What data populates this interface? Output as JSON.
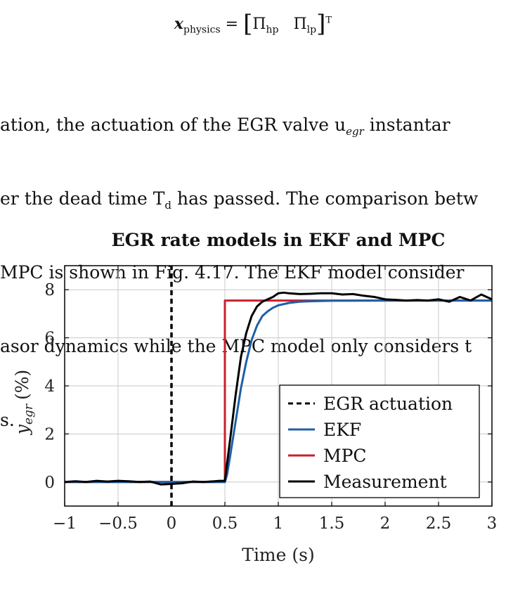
{
  "equation": {
    "lhs_symbol": "x",
    "lhs_subscript": "physics",
    "equals": "=",
    "open_bracket": "[",
    "pi1": "Π",
    "pi1_sub": "hp",
    "pi2": "Π",
    "pi2_sub": "lp",
    "close_bracket": "]",
    "superscript": "T"
  },
  "paragraph": {
    "lines": [
      "ation, the actuation of the EGR valve u",
      "er the dead time T",
      "MPC is shown in Fig. 4.17. The EKF model consider",
      "asor dynamics while the MPC model only considers t",
      "s."
    ],
    "line1_sub": "egr",
    "line1_tail": " instantar",
    "line2_sub": "d",
    "line2_tail": " has passed. The comparison betw"
  },
  "chart_data": {
    "type": "line",
    "title": "EGR rate models in EKF and MPC",
    "xlabel": "Time (s)",
    "ylabel": "y",
    "ylabel_sub": "egr",
    "ylabel_unit": "(%)",
    "xlim": [
      -1,
      3
    ],
    "ylim": [
      -1,
      9
    ],
    "xticks": [
      -1,
      -0.5,
      0,
      0.5,
      1,
      1.5,
      2,
      2.5,
      3
    ],
    "xtick_labels": [
      "−1",
      "−0.5",
      "0",
      "0.5",
      "1",
      "1.5",
      "2",
      "2.5",
      "3"
    ],
    "yticks": [
      0,
      2,
      4,
      6,
      8
    ],
    "ytick_labels": [
      "0",
      "2",
      "4",
      "6",
      "8"
    ],
    "grid": true,
    "legend_position": "bottom-right",
    "vline_x": 0,
    "series": [
      {
        "name": "EGR actuation",
        "color": "#000000",
        "style": "dashed",
        "x": [
          0,
          0
        ],
        "y": [
          -1,
          9
        ]
      },
      {
        "name": "EKF",
        "color": "#1f5fa8",
        "style": "solid",
        "x": [
          -1,
          0.5,
          0.52,
          0.55,
          0.6,
          0.65,
          0.7,
          0.75,
          0.8,
          0.85,
          0.9,
          0.95,
          1.0,
          1.1,
          1.2,
          1.3,
          1.4,
          1.5,
          2.0,
          2.5,
          3.0
        ],
        "y": [
          0,
          0,
          0.3,
          1.1,
          2.5,
          3.9,
          5.0,
          5.9,
          6.5,
          6.9,
          7.1,
          7.25,
          7.35,
          7.45,
          7.5,
          7.52,
          7.53,
          7.54,
          7.55,
          7.55,
          7.55
        ]
      },
      {
        "name": "MPC",
        "color": "#c8202e",
        "style": "solid",
        "x": [
          -1,
          0.5,
          0.5,
          3.0
        ],
        "y": [
          0,
          0,
          7.55,
          7.55
        ]
      },
      {
        "name": "Measurement",
        "color": "#000000",
        "style": "solid",
        "x": [
          -1,
          -0.9,
          -0.8,
          -0.7,
          -0.6,
          -0.5,
          -0.4,
          -0.3,
          -0.2,
          -0.1,
          0,
          0.1,
          0.2,
          0.3,
          0.4,
          0.45,
          0.5,
          0.55,
          0.6,
          0.65,
          0.7,
          0.75,
          0.8,
          0.85,
          0.9,
          0.95,
          1.0,
          1.05,
          1.1,
          1.2,
          1.3,
          1.4,
          1.5,
          1.6,
          1.7,
          1.8,
          1.9,
          2.0,
          2.1,
          2.2,
          2.3,
          2.4,
          2.5,
          2.6,
          2.7,
          2.8,
          2.9,
          3.0
        ],
        "y": [
          0,
          0.03,
          0.0,
          0.05,
          0.02,
          0.05,
          0.03,
          0.0,
          0.02,
          -0.1,
          -0.08,
          -0.05,
          0.02,
          0.0,
          0.03,
          0.05,
          0.05,
          1.8,
          3.6,
          5.2,
          6.2,
          6.9,
          7.3,
          7.5,
          7.6,
          7.7,
          7.85,
          7.88,
          7.85,
          7.82,
          7.83,
          7.85,
          7.85,
          7.8,
          7.82,
          7.75,
          7.7,
          7.6,
          7.58,
          7.55,
          7.57,
          7.55,
          7.6,
          7.5,
          7.7,
          7.55,
          7.8,
          7.6
        ]
      }
    ]
  }
}
